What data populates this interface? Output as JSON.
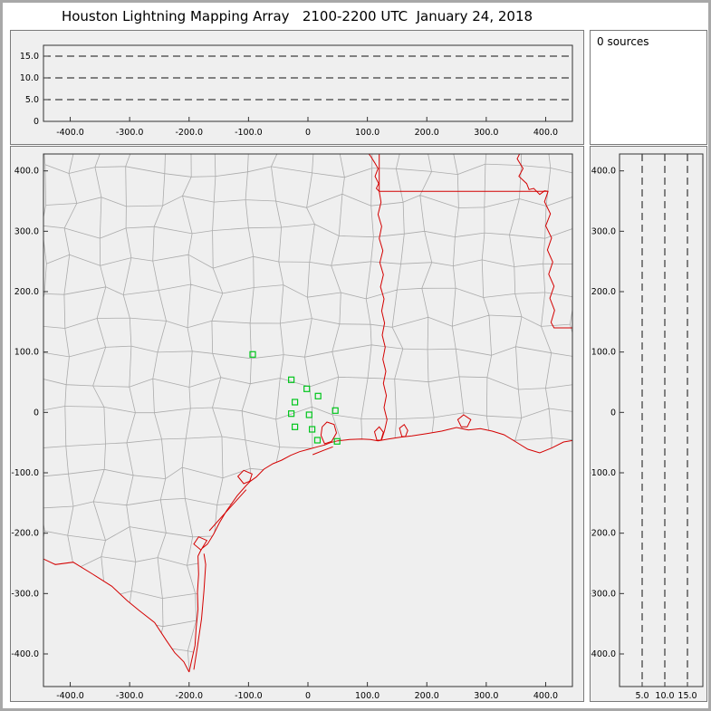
{
  "window": {
    "title": "Houston Lightning Mapping Array   2100-2200 UTC  January 24, 2018"
  },
  "colors": {
    "frame": "#a8a8a8",
    "window_bg": "#ffffff",
    "panel_bg": "#efefef",
    "panel_border": "#7a7a7a",
    "axis": "#333333",
    "gridline": "#111111",
    "county": "#ababab",
    "border_red": "#d40000",
    "station": "#00c61c",
    "text": "#000000"
  },
  "sources": {
    "count_label": "0 sources"
  },
  "chart_data": [
    {
      "id": "altitude-vs-ew-distance",
      "type": "scatter",
      "description": "Top panel: source altitude (km) vs east-west distance (km); zero lightning sources plotted",
      "x_range": [
        -445,
        445
      ],
      "y_range": [
        0,
        17.5
      ],
      "x_ticks": [
        -400,
        -300,
        -200,
        -100,
        0,
        100,
        200,
        300,
        400
      ],
      "x_tick_labels": [
        "-400.0",
        "-300.0",
        "-200.0",
        "-100.0",
        "0",
        "100.0",
        "200.0",
        "300.0",
        "400.0"
      ],
      "y_ticks": [
        0,
        5,
        10,
        15
      ],
      "y_tick_labels": [
        "0",
        "5.0",
        "10.0",
        "15.0"
      ],
      "gridlines_y": [
        5,
        10,
        15
      ],
      "grid_style": "dashed",
      "points": [],
      "point_count": 0
    },
    {
      "id": "plan-view-map",
      "type": "scatter",
      "description": "Plan view map centered on Houston: gray county boundaries, red state borders / coastline / rivers, green squares = LMA stations; zero lightning sources plotted",
      "x_range": [
        -445,
        445
      ],
      "y_range": [
        -454,
        428
      ],
      "x_ticks": [
        -400,
        -300,
        -200,
        -100,
        0,
        100,
        200,
        300,
        400
      ],
      "x_tick_labels": [
        "-400.0",
        "-300.0",
        "-200.0",
        "-100.0",
        "0",
        "100.0",
        "200.0",
        "300.0",
        "400.0"
      ],
      "y_ticks": [
        400,
        300,
        200,
        100,
        0,
        -100,
        -200,
        -300,
        -400
      ],
      "y_tick_labels": [
        "400.0",
        "300.0",
        "200.0",
        "100.0",
        "0",
        "-100.0",
        "-200.0",
        "-300.0",
        "-400.0"
      ],
      "points": [],
      "point_count": 0,
      "lma_stations": [
        [
          -93,
          96
        ],
        [
          -28,
          54
        ],
        [
          -2,
          39
        ],
        [
          17,
          27
        ],
        [
          -22,
          17
        ],
        [
          -28,
          -2
        ],
        [
          2,
          -4
        ],
        [
          46,
          3
        ],
        [
          -22,
          -24
        ],
        [
          7,
          -28
        ],
        [
          16,
          -46
        ],
        [
          49,
          -48
        ]
      ]
    },
    {
      "id": "altitude-vs-ns-distance",
      "type": "scatter",
      "description": "Right panel: altitude (km) vs north-south distance (km); zero lightning sources plotted",
      "x_range": [
        0,
        18.4
      ],
      "y_range": [
        -454,
        428
      ],
      "x_ticks": [
        5,
        10,
        15
      ],
      "x_tick_labels": [
        "5.0",
        "10.0",
        "15.0"
      ],
      "y_ticks": [
        400,
        300,
        200,
        100,
        0,
        -100,
        -200,
        -300,
        -400
      ],
      "y_tick_labels": [
        "400.0",
        "300.0",
        "200.0",
        "100.0",
        "0",
        "-100.0",
        "-200.0",
        "-300.0",
        "-400.0"
      ],
      "gridlines_x": [
        5,
        10,
        15
      ],
      "grid_style": "dashed",
      "points": [],
      "point_count": 0
    }
  ]
}
